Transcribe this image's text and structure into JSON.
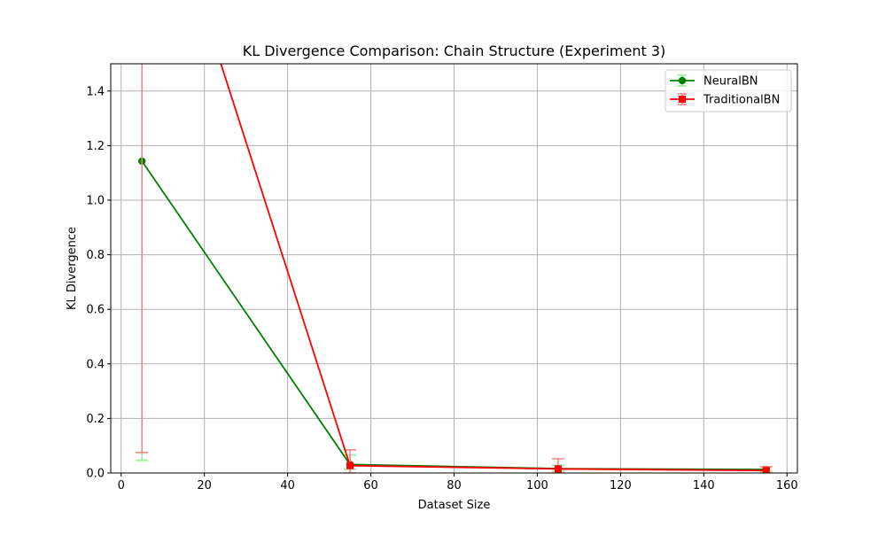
{
  "chart_data": {
    "type": "line",
    "title": "KL Divergence Comparison: Chain Structure (Experiment 3)",
    "xlabel": "Dataset Size",
    "ylabel": "KL Divergence",
    "xlim": [
      -2.5,
      162.5
    ],
    "ylim": [
      0,
      1.5
    ],
    "xticks": [
      0,
      20,
      40,
      60,
      80,
      100,
      120,
      140,
      160
    ],
    "yticks": [
      0.0,
      0.2,
      0.4,
      0.6,
      0.8,
      1.0,
      1.2,
      1.4
    ],
    "grid": true,
    "legend_position": "top-right",
    "series": [
      {
        "name": "NeuralBN",
        "color": "#008000",
        "errorbar_color": "#90ee90",
        "marker": "circle",
        "x": [
          5,
          55,
          105,
          155
        ],
        "y": [
          1.143,
          0.031,
          0.016,
          0.013
        ],
        "err_low": [
          1.097,
          0.017,
          0.01,
          0.007
        ],
        "err_high": [
          2.5,
          0.035,
          0.012,
          0.01
        ]
      },
      {
        "name": "TraditionalBN",
        "color": "#ff0000",
        "errorbar_color": "#f08080",
        "marker": "square",
        "x": [
          5,
          55,
          105,
          155
        ],
        "y": [
          2.4,
          0.027,
          0.015,
          0.009
        ],
        "err_low": [
          2.325,
          0.027,
          0.015,
          0.009
        ],
        "err_high": [
          3.0,
          0.058,
          0.037,
          0.014
        ]
      }
    ]
  }
}
